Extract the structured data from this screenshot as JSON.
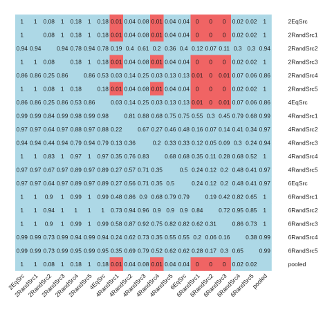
{
  "chart_data": {
    "type": "heatmap",
    "labels": [
      "2EqSrc",
      "2RandSrc1",
      "2RandSrc2",
      "2RandSrc3",
      "2RandSrc4",
      "2RandSrc5",
      "4EqSrc",
      "4RandSrc1",
      "4RandSrc2",
      "4RandSrc3",
      "4RandSrc4",
      "4RandSrc5",
      "6EqSrc",
      "6RandSrc1",
      "6RandSrc2",
      "6RandSrc3",
      "6RandSrc4",
      "6RandSrc5",
      "pooled"
    ],
    "matrix": [
      [
        "1",
        "1",
        "0.08",
        "1",
        "0.18",
        "1",
        "0.18",
        "0.01",
        "0.04",
        "0.08",
        "0.01",
        "0.04",
        "0.04",
        "0",
        "0",
        "0",
        "0.02",
        "0.02",
        "1"
      ],
      [
        "1",
        "",
        "0.08",
        "1",
        "0.18",
        "1",
        "0.18",
        "0.01",
        "0.04",
        "0.08",
        "0.01",
        "0.04",
        "0.04",
        "0",
        "0",
        "0",
        "0.02",
        "0.02",
        "1"
      ],
      [
        "0.94",
        "0.94",
        "",
        "0.94",
        "0.78",
        "0.94",
        "0.78",
        "0.19",
        "0.4",
        "0.61",
        "0.2",
        "0.36",
        "0.4",
        "0.12",
        "0.07",
        "0.11",
        "0.3",
        "0.3",
        "0.94"
      ],
      [
        "1",
        "1",
        "0.08",
        "",
        "0.18",
        "1",
        "0.18",
        "0.01",
        "0.04",
        "0.08",
        "0.01",
        "0.04",
        "0.04",
        "0",
        "0",
        "0",
        "0.02",
        "0.02",
        "1"
      ],
      [
        "0.86",
        "0.86",
        "0.25",
        "0.86",
        "",
        "0.86",
        "0.53",
        "0.03",
        "0.14",
        "0.25",
        "0.03",
        "0.13",
        "0.13",
        "0.01",
        "0",
        "0.01",
        "0.07",
        "0.06",
        "0.86"
      ],
      [
        "1",
        "1",
        "0.08",
        "1",
        "0.18",
        "",
        "0.18",
        "0.01",
        "0.04",
        "0.08",
        "0.01",
        "0.04",
        "0.04",
        "0",
        "0",
        "0",
        "0.02",
        "0.02",
        "1"
      ],
      [
        "0.86",
        "0.86",
        "0.25",
        "0.86",
        "0.53",
        "0.86",
        "",
        "0.03",
        "0.14",
        "0.25",
        "0.03",
        "0.13",
        "0.13",
        "0.01",
        "0",
        "0.01",
        "0.07",
        "0.06",
        "0.86"
      ],
      [
        "0.99",
        "0.99",
        "0.84",
        "0.99",
        "0.98",
        "0.99",
        "0.98",
        "",
        "0.81",
        "0.88",
        "0.68",
        "0.75",
        "0.75",
        "0.55",
        "0.3",
        "0.45",
        "0.79",
        "0.68",
        "0.99"
      ],
      [
        "0.97",
        "0.97",
        "0.64",
        "0.97",
        "0.88",
        "0.97",
        "0.88",
        "0.22",
        "",
        "0.67",
        "0.27",
        "0.46",
        "0.48",
        "0.16",
        "0.07",
        "0.14",
        "0.41",
        "0.34",
        "0.97"
      ],
      [
        "0.94",
        "0.94",
        "0.44",
        "0.94",
        "0.79",
        "0.94",
        "0.79",
        "0.13",
        "0.36",
        "",
        "0.2",
        "0.33",
        "0.33",
        "0.12",
        "0.05",
        "0.09",
        "0.3",
        "0.24",
        "0.94"
      ],
      [
        "1",
        "1",
        "0.83",
        "1",
        "0.97",
        "1",
        "0.97",
        "0.35",
        "0.76",
        "0.83",
        "",
        "0.68",
        "0.68",
        "0.35",
        "0.11",
        "0.28",
        "0.68",
        "0.52",
        "1"
      ],
      [
        "0.97",
        "0.97",
        "0.67",
        "0.97",
        "0.89",
        "0.97",
        "0.89",
        "0.27",
        "0.57",
        "0.71",
        "0.35",
        "",
        "0.5",
        "0.24",
        "0.12",
        "0.2",
        "0.48",
        "0.41",
        "0.97"
      ],
      [
        "0.97",
        "0.97",
        "0.64",
        "0.97",
        "0.89",
        "0.97",
        "0.89",
        "0.27",
        "0.56",
        "0.71",
        "0.35",
        "0.5",
        "",
        "0.24",
        "0.12",
        "0.2",
        "0.48",
        "0.41",
        "0.97"
      ],
      [
        "1",
        "1",
        "0.9",
        "1",
        "0.99",
        "1",
        "0.99",
        "0.48",
        "0.86",
        "0.9",
        "0.68",
        "0.79",
        "0.79",
        "",
        "0.19",
        "0.42",
        "0.82",
        "0.65",
        "1"
      ],
      [
        "1",
        "1",
        "0.94",
        "1",
        "1",
        "1",
        "1",
        "0.73",
        "0.94",
        "0.96",
        "0.9",
        "0.9",
        "0.9",
        "0.84",
        "",
        "0.72",
        "0.95",
        "0.85",
        "1"
      ],
      [
        "1",
        "1",
        "0.9",
        "1",
        "0.99",
        "1",
        "0.99",
        "0.58",
        "0.87",
        "0.92",
        "0.75",
        "0.82",
        "0.82",
        "0.62",
        "0.31",
        "",
        "0.86",
        "0.73",
        "1"
      ],
      [
        "0.99",
        "0.99",
        "0.73",
        "0.99",
        "0.94",
        "0.99",
        "0.94",
        "0.24",
        "0.62",
        "0.73",
        "0.35",
        "0.55",
        "0.55",
        "0.2",
        "0.06",
        "0.16",
        "",
        "0.38",
        "0.99"
      ],
      [
        "0.99",
        "0.99",
        "0.73",
        "0.99",
        "0.95",
        "0.99",
        "0.95",
        "0.35",
        "0.69",
        "0.79",
        "0.52",
        "0.62",
        "0.62",
        "0.28",
        "0.17",
        "0.3",
        "0.65",
        "",
        "0.99"
      ],
      [
        "1",
        "1",
        "0.08",
        "1",
        "0.18",
        "1",
        "0.18",
        "0.01",
        "0.04",
        "0.08",
        "0.01",
        "0.04",
        "0.04",
        "0",
        "0",
        "0",
        "0.02",
        "0.02",
        ""
      ]
    ],
    "highlight_threshold": 0.01,
    "colors": {
      "high": "#add8e6",
      "low": "#f06464",
      "text": "#1a1a1a"
    },
    "legend": "none",
    "grid": false
  }
}
